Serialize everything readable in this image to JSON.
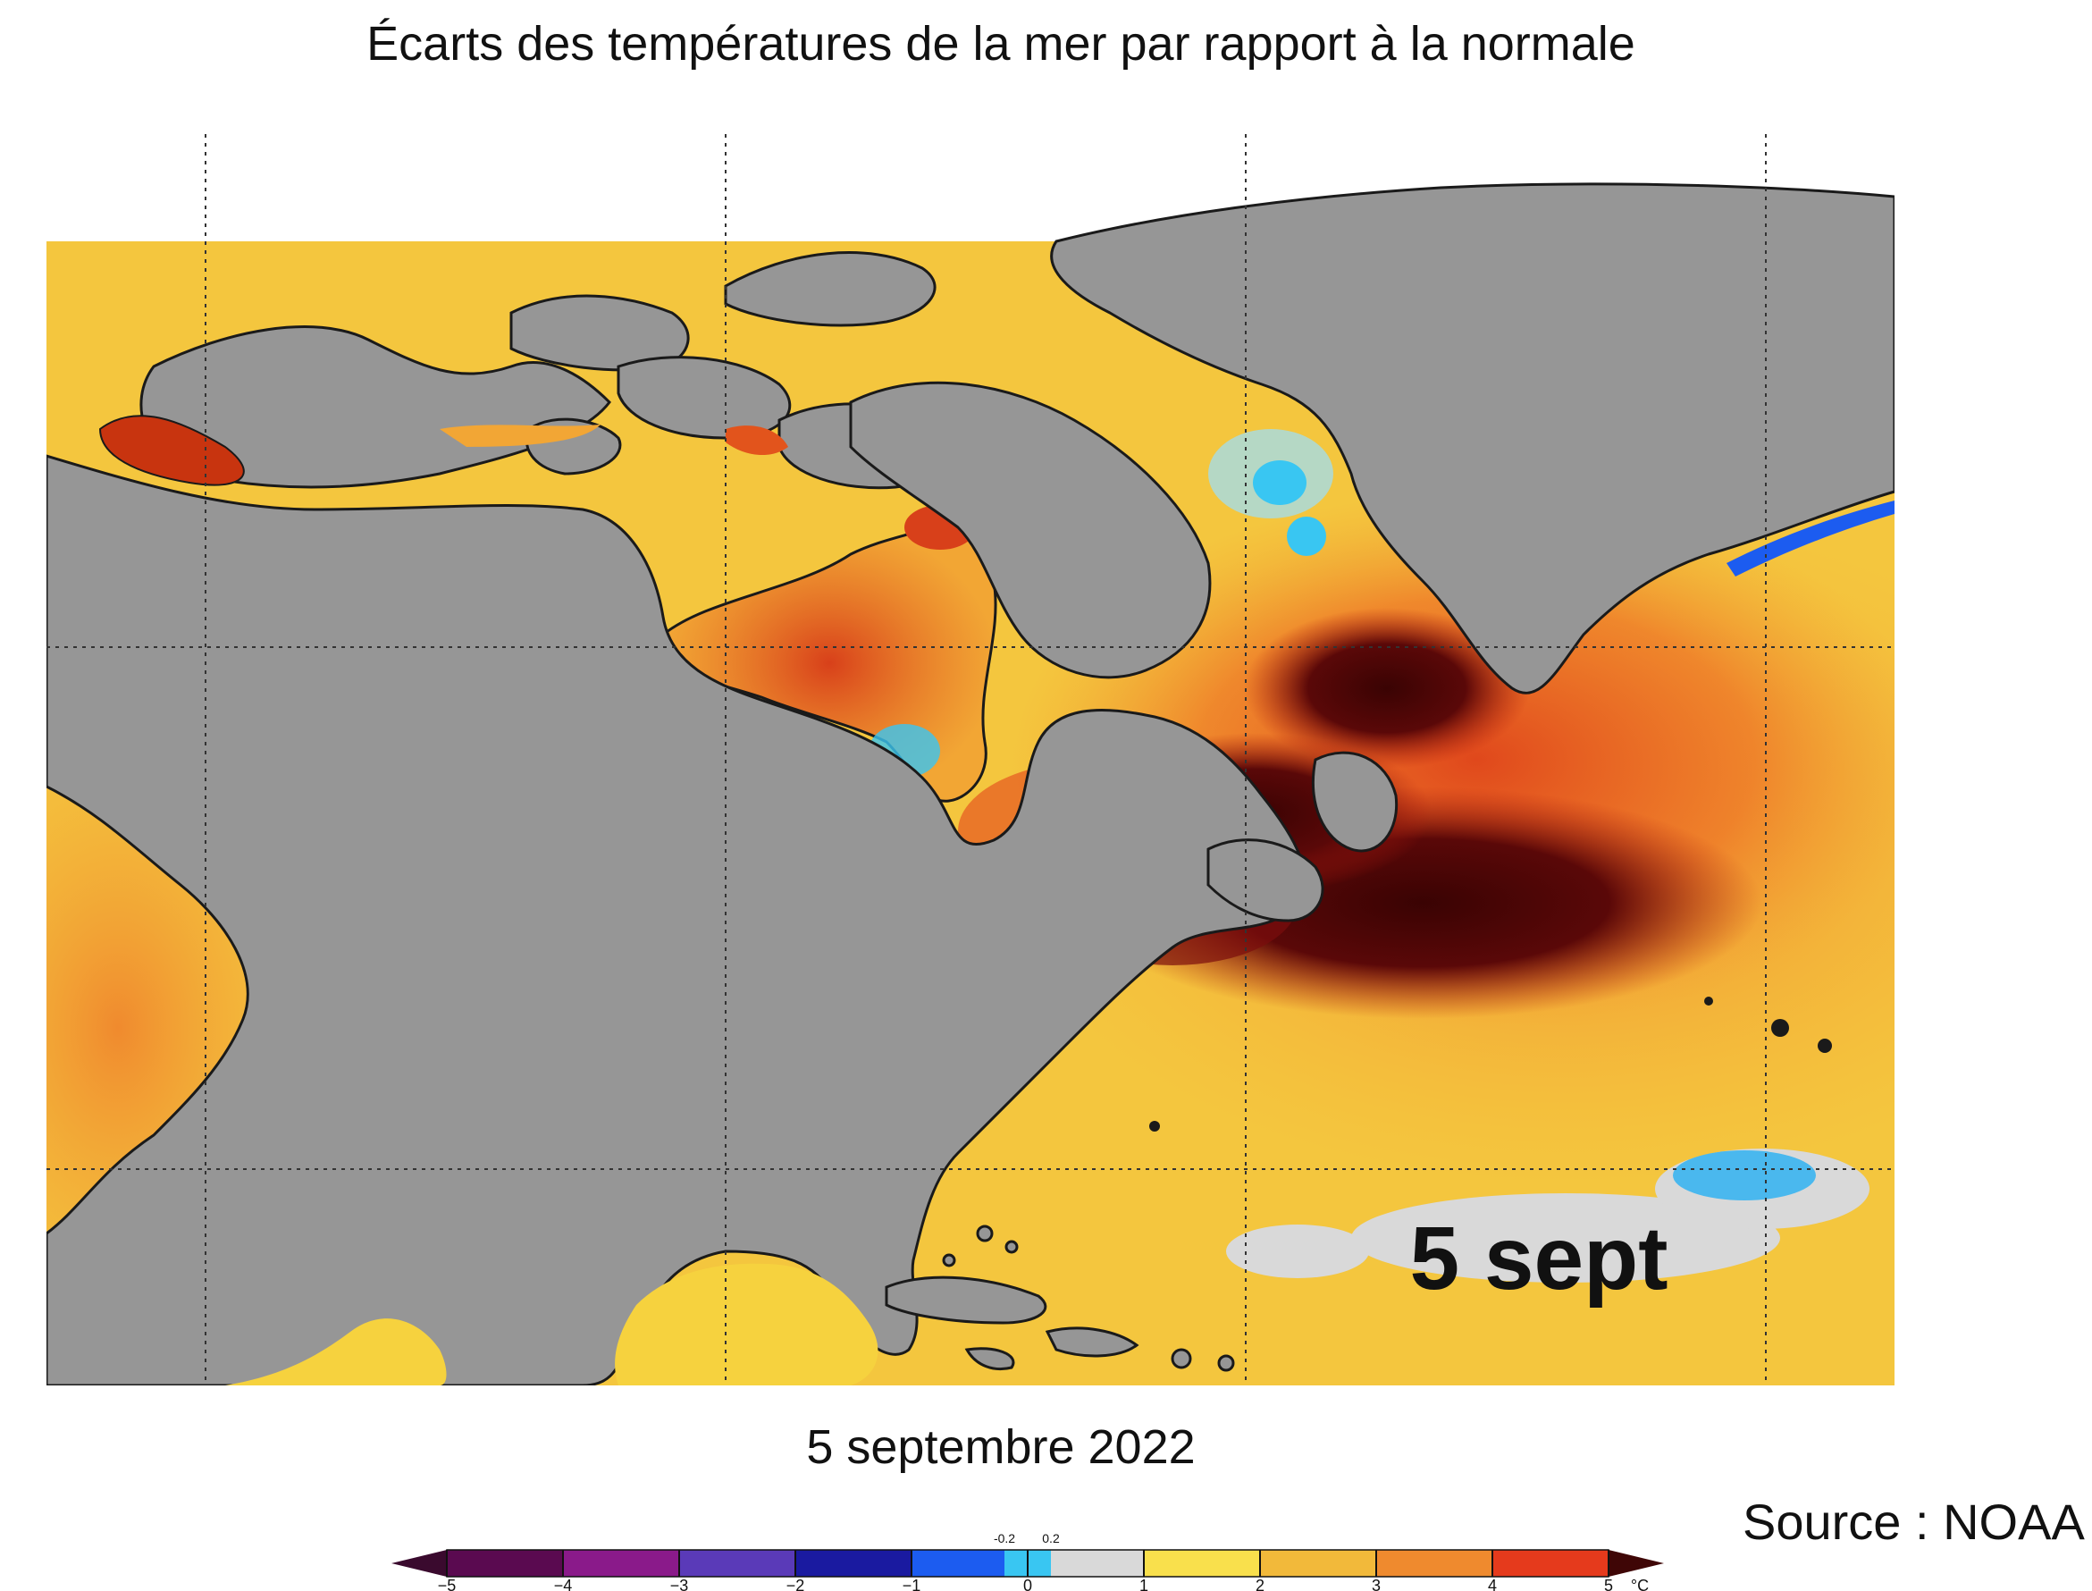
{
  "title": "Écarts des températures de la mer par rapport à la normale",
  "map": {
    "overlay_label": "5 sept",
    "land_color": "#969696",
    "ice_color": "#ffffff",
    "region": "North Atlantic and North America"
  },
  "date_label": "5 septembre 2022",
  "source": "Source : NOAA",
  "colorbar": {
    "unit": "°C",
    "ticks": [
      "−5",
      "−4",
      "−3",
      "−2",
      "−1",
      "0",
      "1",
      "2",
      "3",
      "4",
      "5"
    ],
    "small_ticks": [
      "-0.2",
      "0.2"
    ],
    "bins": [
      {
        "color": "#5a0a50"
      },
      {
        "color": "#8a1a8a"
      },
      {
        "color": "#5a3ab8"
      },
      {
        "color": "#1a1aa0"
      },
      {
        "color": "#1c5cf0"
      },
      {
        "color": "#39c6f2"
      },
      {
        "color": "#d9d9d9"
      },
      {
        "color": "#f9e04c"
      },
      {
        "color": "#f2b93a"
      },
      {
        "color": "#ef8a2e"
      },
      {
        "color": "#e53a1c"
      },
      {
        "color": "#9a1a10"
      }
    ],
    "end_low_color": "#3a0a2e",
    "end_high_color": "#3f0606"
  }
}
